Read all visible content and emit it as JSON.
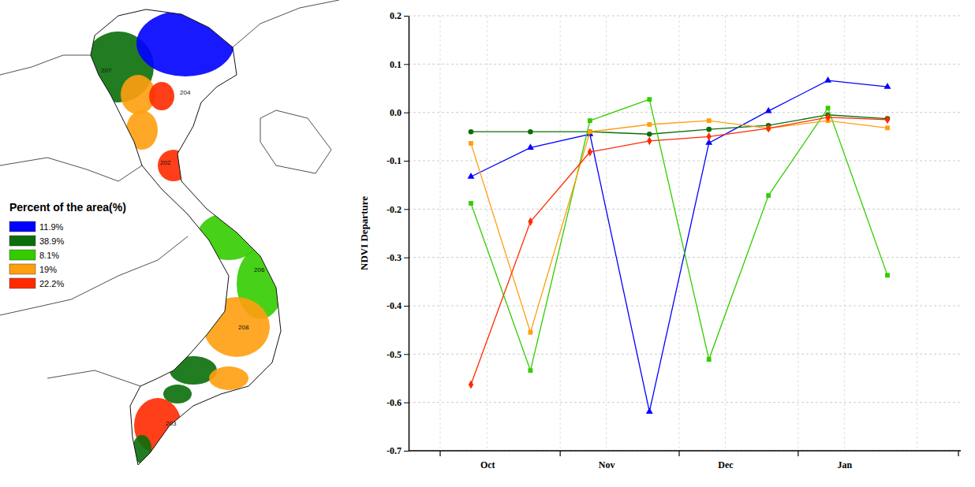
{
  "chart_data": {
    "type": "line",
    "y_label": "NDVI Departure",
    "categories": [
      "Oct",
      null,
      "Nov",
      null,
      "Dec",
      null,
      "Jan",
      null
    ],
    "series": [
      {
        "name": "11.9%",
        "color": "#0000ff",
        "marker": "triangle",
        "values": [
          -0.133,
          -0.073,
          -0.045,
          -0.619,
          -0.063,
          0.003,
          0.066,
          0.053
        ]
      },
      {
        "name": "38.9%",
        "color": "#0a6e0a",
        "marker": "circle",
        "values": [
          -0.04,
          -0.04,
          -0.04,
          -0.045,
          -0.035,
          -0.027,
          -0.005,
          -0.013
        ]
      },
      {
        "name": "8.1%",
        "color": "#33cc00",
        "marker": "square",
        "values": [
          -0.188,
          -0.534,
          -0.017,
          0.027,
          -0.511,
          -0.172,
          0.009,
          -0.337
        ]
      },
      {
        "name": "19%",
        "color": "#ff9e0f",
        "marker": "square",
        "values": [
          -0.064,
          -0.455,
          -0.04,
          -0.025,
          -0.017,
          -0.033,
          -0.017,
          -0.032
        ]
      },
      {
        "name": "22.2%",
        "color": "#ff2a00",
        "marker": "diamond",
        "values": [
          -0.563,
          -0.226,
          -0.082,
          -0.059,
          -0.05,
          -0.033,
          -0.01,
          -0.015
        ]
      }
    ],
    "ylim": [
      -0.7,
      0.2
    ],
    "yticks": [
      -0.7,
      -0.6,
      -0.5,
      -0.4,
      -0.3,
      -0.2,
      -0.1,
      {
        "value": 0,
        "label": "0.0"
      },
      0.1,
      0.2
    ],
    "grid": true,
    "legend": "left"
  },
  "map": {
    "legend_title": "Percent of the area(%)",
    "region_labels": [
      "207",
      "204",
      "202",
      "206",
      "208",
      "203"
    ]
  }
}
